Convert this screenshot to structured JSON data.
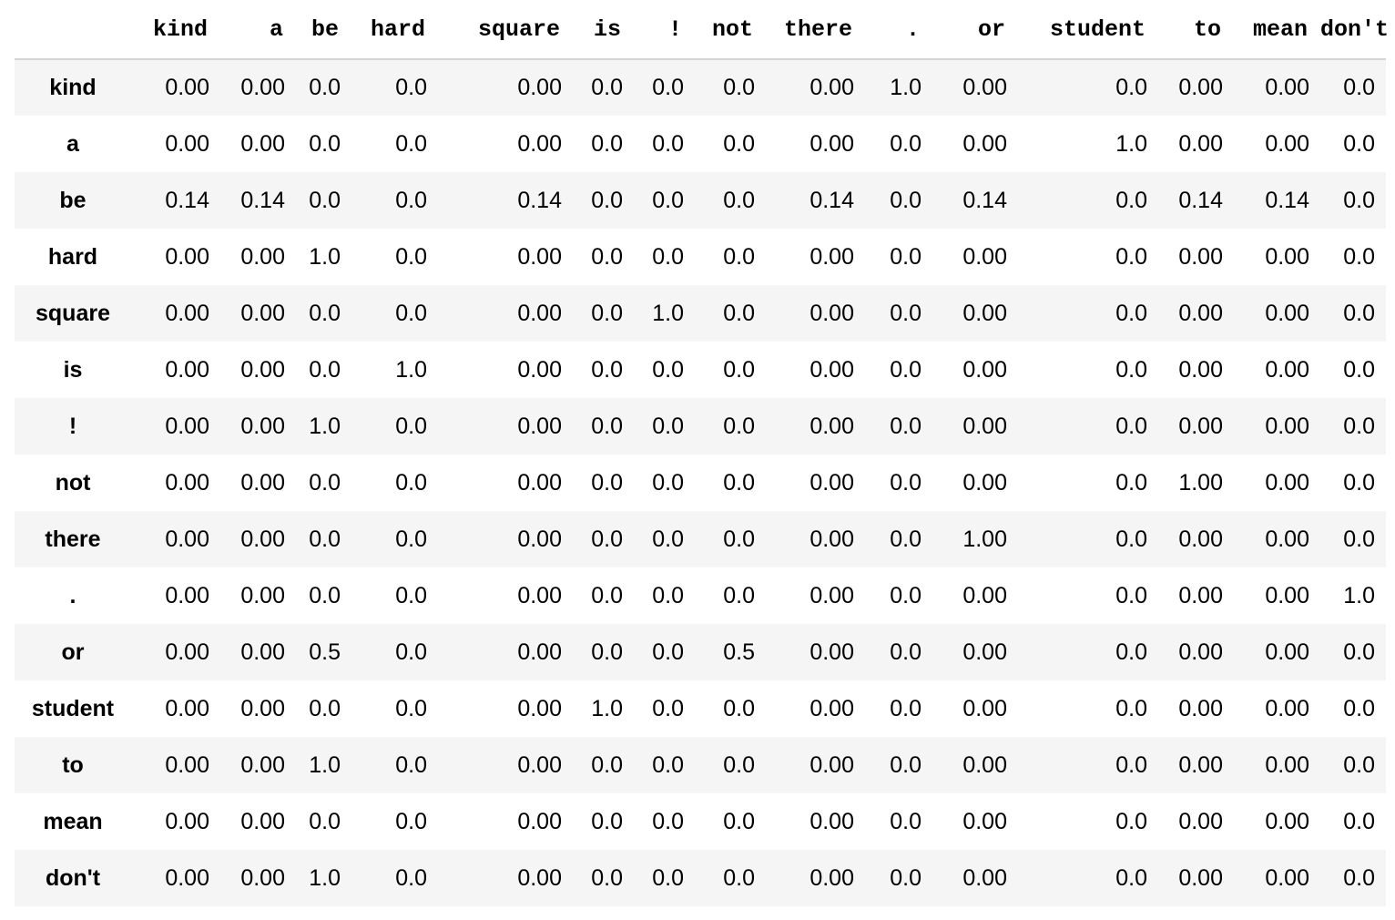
{
  "table": {
    "columns": [
      "kind",
      "a",
      "be",
      "hard",
      "square",
      "is",
      "!",
      "not",
      "there",
      ".",
      "or",
      "student",
      "to",
      "mean",
      "don't"
    ],
    "rows": [
      {
        "label": "kind",
        "values": [
          "0.00",
          "0.00",
          "0.0",
          "0.0",
          "0.00",
          "0.0",
          "0.0",
          "0.0",
          "0.00",
          "1.0",
          "0.00",
          "0.0",
          "0.00",
          "0.00",
          "0.0"
        ]
      },
      {
        "label": "a",
        "values": [
          "0.00",
          "0.00",
          "0.0",
          "0.0",
          "0.00",
          "0.0",
          "0.0",
          "0.0",
          "0.00",
          "0.0",
          "0.00",
          "1.0",
          "0.00",
          "0.00",
          "0.0"
        ]
      },
      {
        "label": "be",
        "values": [
          "0.14",
          "0.14",
          "0.0",
          "0.0",
          "0.14",
          "0.0",
          "0.0",
          "0.0",
          "0.14",
          "0.0",
          "0.14",
          "0.0",
          "0.14",
          "0.14",
          "0.0"
        ]
      },
      {
        "label": "hard",
        "values": [
          "0.00",
          "0.00",
          "1.0",
          "0.0",
          "0.00",
          "0.0",
          "0.0",
          "0.0",
          "0.00",
          "0.0",
          "0.00",
          "0.0",
          "0.00",
          "0.00",
          "0.0"
        ]
      },
      {
        "label": "square",
        "values": [
          "0.00",
          "0.00",
          "0.0",
          "0.0",
          "0.00",
          "0.0",
          "1.0",
          "0.0",
          "0.00",
          "0.0",
          "0.00",
          "0.0",
          "0.00",
          "0.00",
          "0.0"
        ]
      },
      {
        "label": "is",
        "values": [
          "0.00",
          "0.00",
          "0.0",
          "1.0",
          "0.00",
          "0.0",
          "0.0",
          "0.0",
          "0.00",
          "0.0",
          "0.00",
          "0.0",
          "0.00",
          "0.00",
          "0.0"
        ]
      },
      {
        "label": "!",
        "values": [
          "0.00",
          "0.00",
          "1.0",
          "0.0",
          "0.00",
          "0.0",
          "0.0",
          "0.0",
          "0.00",
          "0.0",
          "0.00",
          "0.0",
          "0.00",
          "0.00",
          "0.0"
        ]
      },
      {
        "label": "not",
        "values": [
          "0.00",
          "0.00",
          "0.0",
          "0.0",
          "0.00",
          "0.0",
          "0.0",
          "0.0",
          "0.00",
          "0.0",
          "0.00",
          "0.0",
          "1.00",
          "0.00",
          "0.0"
        ]
      },
      {
        "label": "there",
        "values": [
          "0.00",
          "0.00",
          "0.0",
          "0.0",
          "0.00",
          "0.0",
          "0.0",
          "0.0",
          "0.00",
          "0.0",
          "1.00",
          "0.0",
          "0.00",
          "0.00",
          "0.0"
        ]
      },
      {
        "label": ".",
        "values": [
          "0.00",
          "0.00",
          "0.0",
          "0.0",
          "0.00",
          "0.0",
          "0.0",
          "0.0",
          "0.00",
          "0.0",
          "0.00",
          "0.0",
          "0.00",
          "0.00",
          "1.0"
        ]
      },
      {
        "label": "or",
        "values": [
          "0.00",
          "0.00",
          "0.5",
          "0.0",
          "0.00",
          "0.0",
          "0.0",
          "0.5",
          "0.00",
          "0.0",
          "0.00",
          "0.0",
          "0.00",
          "0.00",
          "0.0"
        ]
      },
      {
        "label": "student",
        "values": [
          "0.00",
          "0.00",
          "0.0",
          "0.0",
          "0.00",
          "1.0",
          "0.0",
          "0.0",
          "0.00",
          "0.0",
          "0.00",
          "0.0",
          "0.00",
          "0.00",
          "0.0"
        ]
      },
      {
        "label": "to",
        "values": [
          "0.00",
          "0.00",
          "1.0",
          "0.0",
          "0.00",
          "0.0",
          "0.0",
          "0.0",
          "0.00",
          "0.0",
          "0.00",
          "0.0",
          "0.00",
          "0.00",
          "0.0"
        ]
      },
      {
        "label": "mean",
        "values": [
          "0.00",
          "0.00",
          "0.0",
          "0.0",
          "0.00",
          "0.0",
          "0.0",
          "0.0",
          "0.00",
          "0.0",
          "0.00",
          "0.0",
          "0.00",
          "0.00",
          "0.0"
        ]
      },
      {
        "label": "don't",
        "values": [
          "0.00",
          "0.00",
          "1.0",
          "0.0",
          "0.00",
          "0.0",
          "0.0",
          "0.0",
          "0.00",
          "0.0",
          "0.00",
          "0.0",
          "0.00",
          "0.00",
          "0.0"
        ]
      }
    ]
  },
  "colors": {
    "row_stripe": "#f5f5f5",
    "header_rule": "#d4d4d4",
    "text": "#000000"
  }
}
